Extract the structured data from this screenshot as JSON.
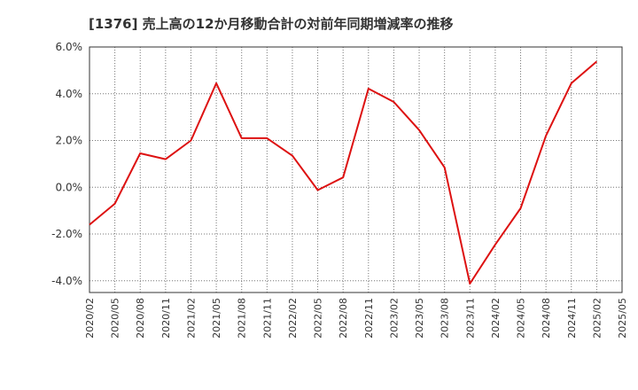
{
  "chart_data": {
    "type": "line",
    "title": "[1376]  売上高の12か月移動合計の対前年同期増減率の推移",
    "xlabel": "",
    "ylabel": "",
    "ylim": [
      -4.5,
      6.0
    ],
    "yticks": [
      -4.0,
      -2.0,
      0.0,
      2.0,
      4.0,
      6.0
    ],
    "ytick_labels": [
      "-4.0%",
      "-2.0%",
      "0.0%",
      "2.0%",
      "4.0%",
      "6.0%"
    ],
    "categories": [
      "2020/02",
      "2020/05",
      "2020/08",
      "2020/11",
      "2021/02",
      "2021/05",
      "2021/08",
      "2021/11",
      "2022/02",
      "2022/05",
      "2022/08",
      "2022/11",
      "2023/02",
      "2023/05",
      "2023/08",
      "2023/11",
      "2024/02",
      "2024/05",
      "2024/08",
      "2024/11",
      "2025/02",
      "2025/05"
    ],
    "series": [
      {
        "name": "増減率",
        "color": "#dd1111",
        "values": [
          -1.6,
          -0.7,
          1.45,
          1.2,
          2.0,
          4.45,
          2.1,
          2.1,
          1.35,
          -0.12,
          0.42,
          4.22,
          3.65,
          2.45,
          0.85,
          -4.12,
          -2.45,
          -0.9,
          2.2,
          4.45,
          5.38,
          null
        ]
      }
    ],
    "grid": true,
    "legend": "none"
  }
}
